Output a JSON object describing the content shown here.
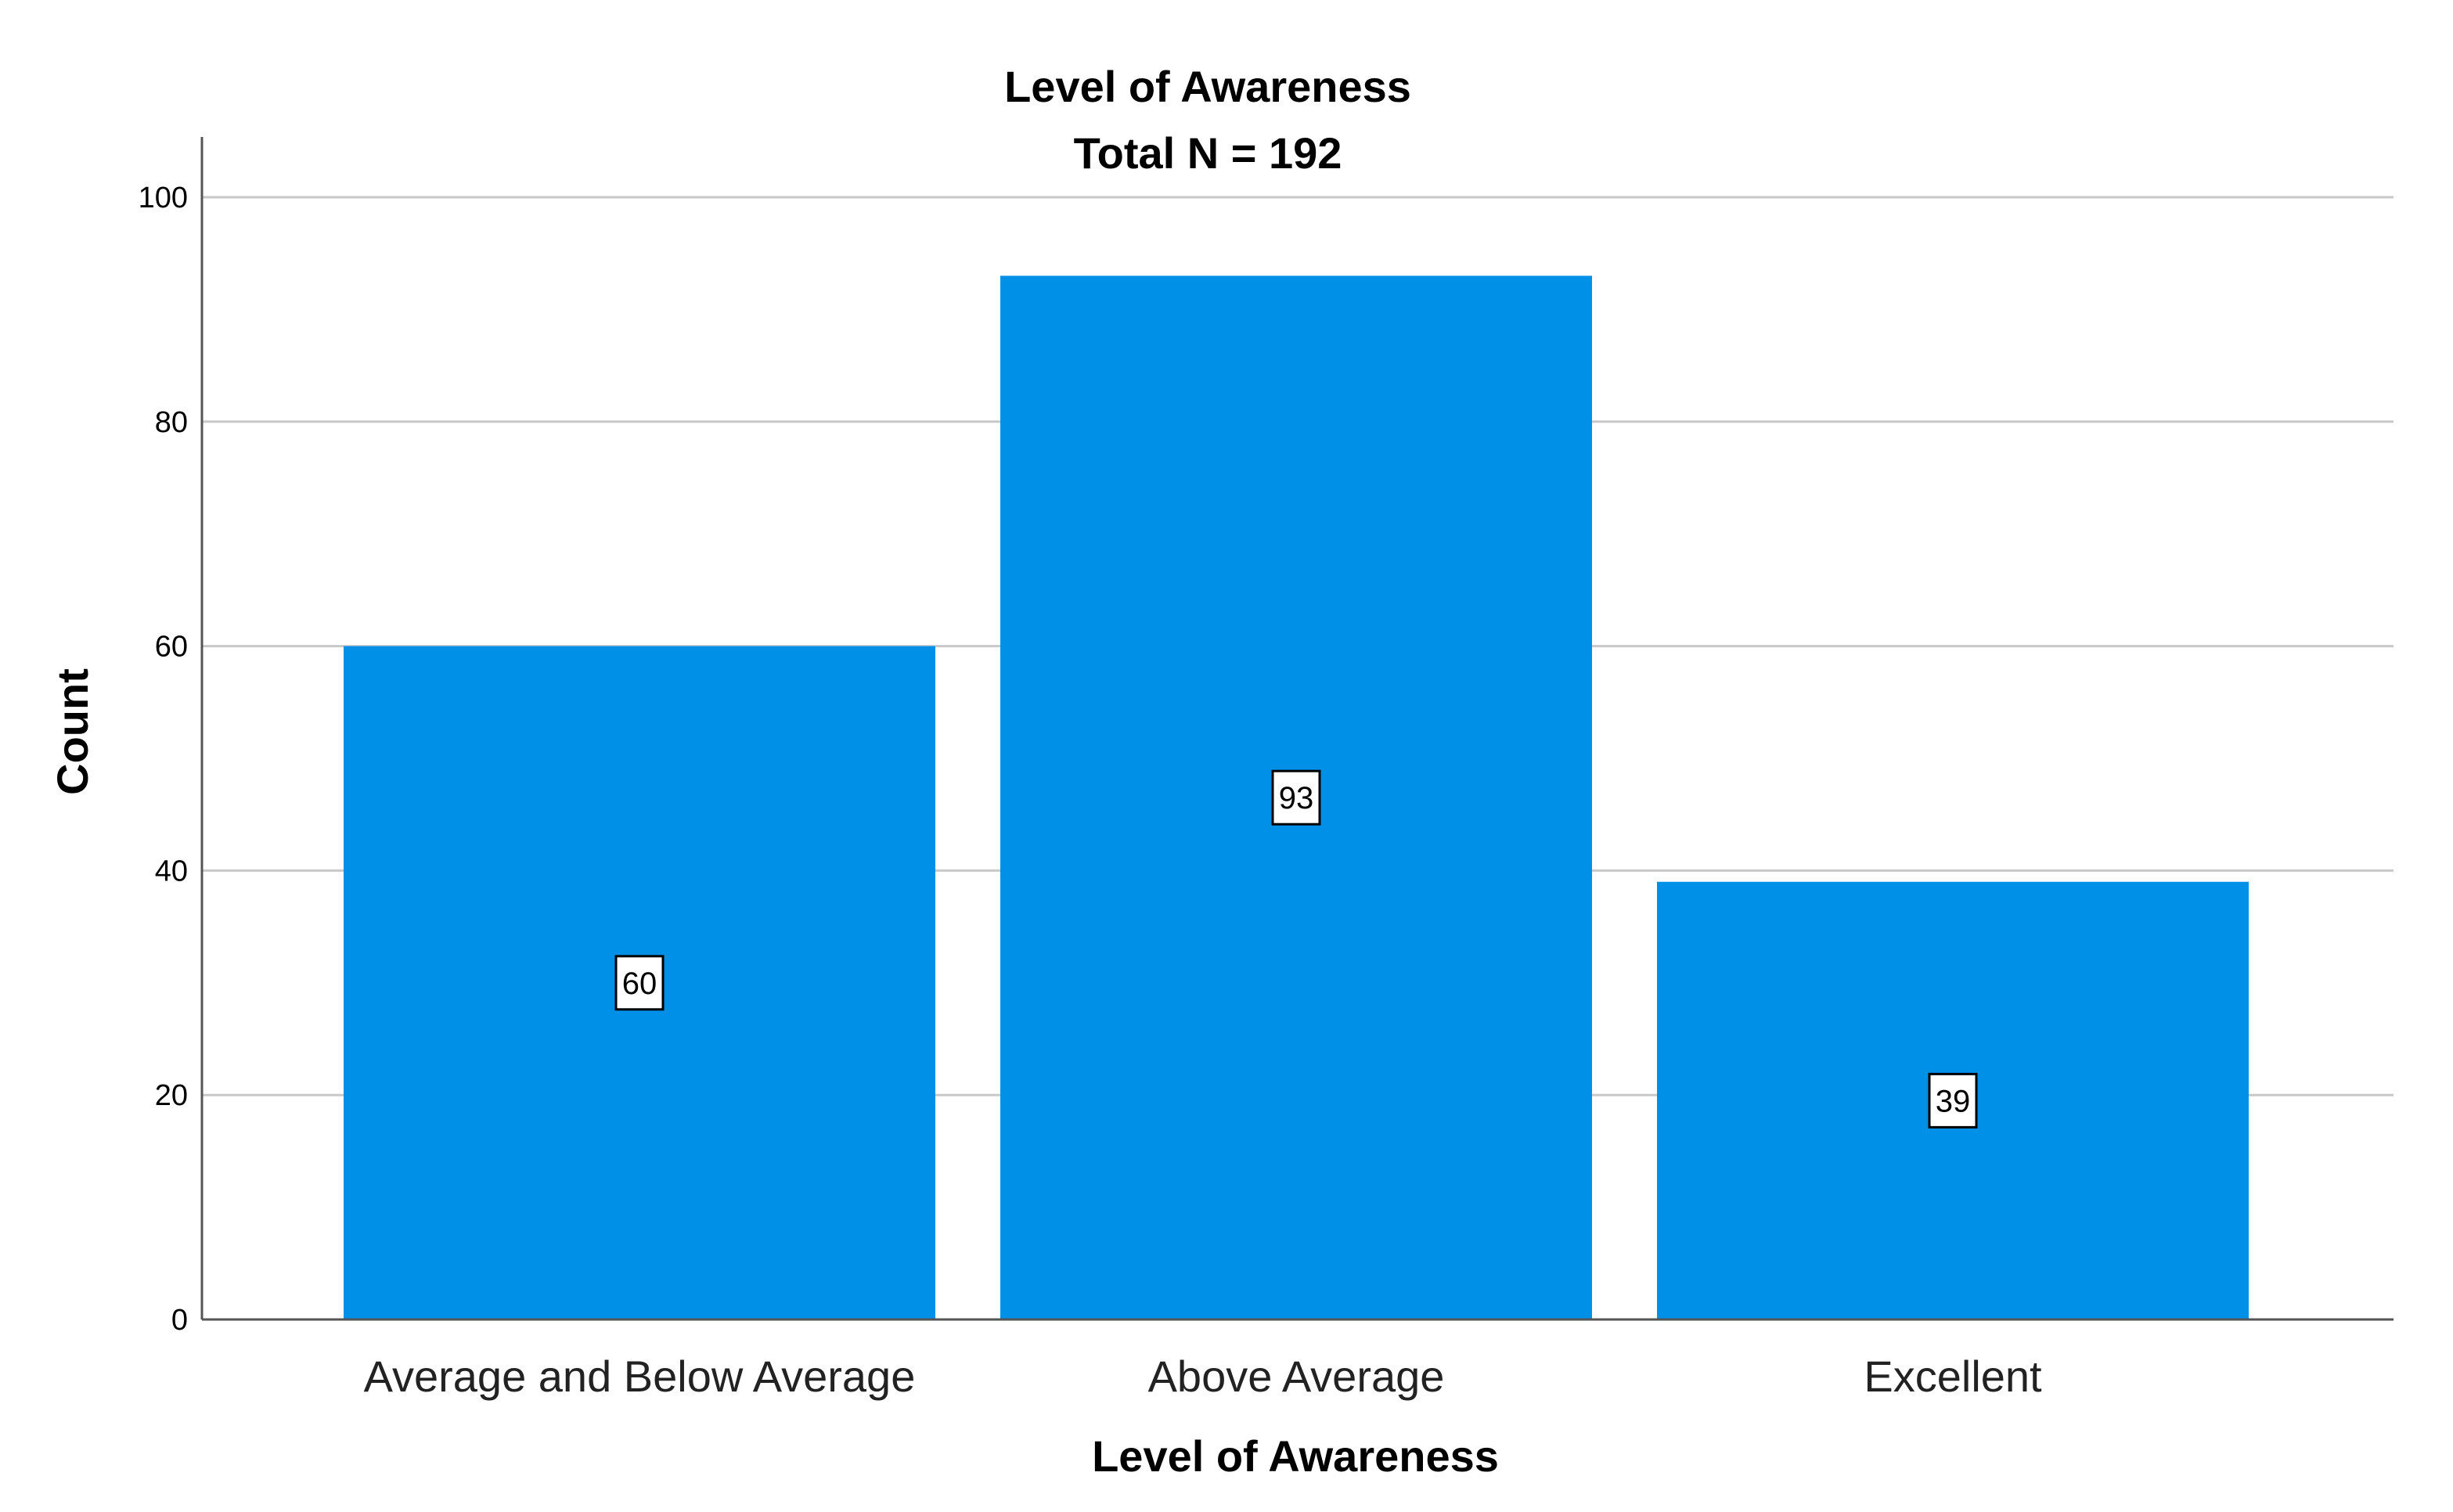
{
  "chart_data": {
    "type": "bar",
    "title": "Level of Awareness",
    "subtitle": "Total N = 192",
    "xlabel": "Level of Awareness",
    "ylabel": "Count",
    "categories": [
      "Average and Below Average",
      "Above Average",
      "Excellent"
    ],
    "values": [
      60,
      93,
      39
    ],
    "data_labels": [
      "60",
      "93",
      "39"
    ],
    "ylim": [
      0,
      100
    ],
    "yticks": [
      0,
      20,
      40,
      60,
      80,
      100
    ],
    "ytick_labels": [
      "0",
      "20",
      "40",
      "60",
      "80",
      "100"
    ],
    "grid": true,
    "legend": "none",
    "bar_color": "#0090e8",
    "grid_color": "#c8c8c8",
    "axis_color": "#555555"
  }
}
